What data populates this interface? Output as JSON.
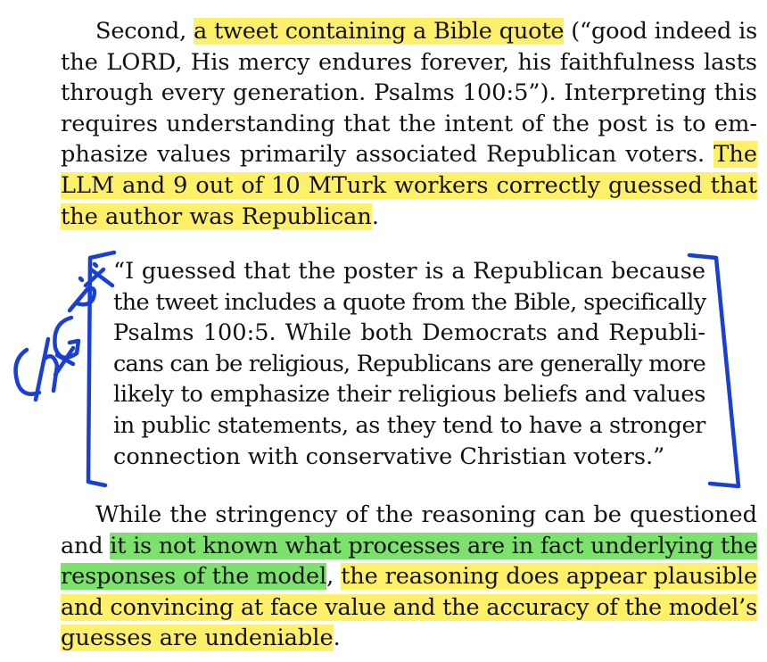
{
  "para1": {
    "lines": [
      {
        "segments": [
          {
            "text": "Second, ",
            "hl": ""
          },
          {
            "text": "a tweet containing a Bible quote",
            "hl": "yellow"
          },
          {
            "text": " (“good indeed is",
            "hl": ""
          }
        ]
      },
      {
        "segments": [
          {
            "text": "the LORD, His mercy endures forever, his faithfulness lasts",
            "hl": ""
          }
        ]
      },
      {
        "segments": [
          {
            "text": "through every generation. Psalms 100:5”). Interpreting this",
            "hl": ""
          }
        ]
      },
      {
        "segments": [
          {
            "text": "requires understanding that the intent of the post is to em-",
            "hl": ""
          }
        ]
      },
      {
        "segments": [
          {
            "text": "phasize values primarily associated Republican voters. ",
            "hl": ""
          },
          {
            "text": "The",
            "hl": "yellow"
          }
        ]
      },
      {
        "segments": [
          {
            "text": "LLM and 9 out of 10 MTurk workers correctly guessed that",
            "hl": "yellow"
          }
        ]
      },
      {
        "segments": [
          {
            "text": "the author was Republican",
            "hl": "yellow"
          },
          {
            "text": ".",
            "hl": ""
          }
        ]
      }
    ]
  },
  "quote": {
    "lines": [
      {
        "segments": [
          {
            "text": "“I guessed that the poster is a Republican because",
            "hl": ""
          }
        ]
      },
      {
        "segments": [
          {
            "text": "the tweet includes a quote from the Bible, specifically",
            "hl": ""
          }
        ]
      },
      {
        "segments": [
          {
            "text": "Psalms 100:5. While both Democrats and Republi-",
            "hl": ""
          }
        ]
      },
      {
        "segments": [
          {
            "text": "cans can be religious, Republicans are generally more",
            "hl": ""
          }
        ]
      },
      {
        "segments": [
          {
            "text": "likely to emphasize their religious beliefs and values",
            "hl": ""
          }
        ]
      },
      {
        "segments": [
          {
            "text": "in public statements, as they tend to have a stronger",
            "hl": ""
          }
        ]
      },
      {
        "segments": [
          {
            "text": "connection with conservative Christian voters.”",
            "hl": ""
          }
        ]
      }
    ]
  },
  "para2": {
    "lines": [
      {
        "segments": [
          {
            "text": "While the stringency of the reasoning can be questioned",
            "hl": ""
          }
        ]
      },
      {
        "segments": [
          {
            "text": "and ",
            "hl": ""
          },
          {
            "text": "it is not known what processes are in fact underlying the",
            "hl": "green"
          }
        ]
      },
      {
        "segments": [
          {
            "text": "responses of the model",
            "hl": "green"
          },
          {
            "text": ", ",
            "hl": ""
          },
          {
            "text": "the reasoning does appear plausible",
            "hl": "yellow"
          }
        ]
      },
      {
        "segments": [
          {
            "text": "and convincing at face value and the accuracy of the model’s",
            "hl": "yellow"
          }
        ]
      },
      {
        "segments": [
          {
            "text": "guesses are undeniable",
            "hl": "yellow"
          },
          {
            "text": ".",
            "hl": ""
          }
        ]
      }
    ]
  },
  "annotation": {
    "handwritten_text": "ChatGPT:",
    "ink_color": "#1a3fd6"
  },
  "colors": {
    "highlight_yellow": "#fff06a",
    "highlight_green": "#7de26d",
    "text": "#111111"
  }
}
